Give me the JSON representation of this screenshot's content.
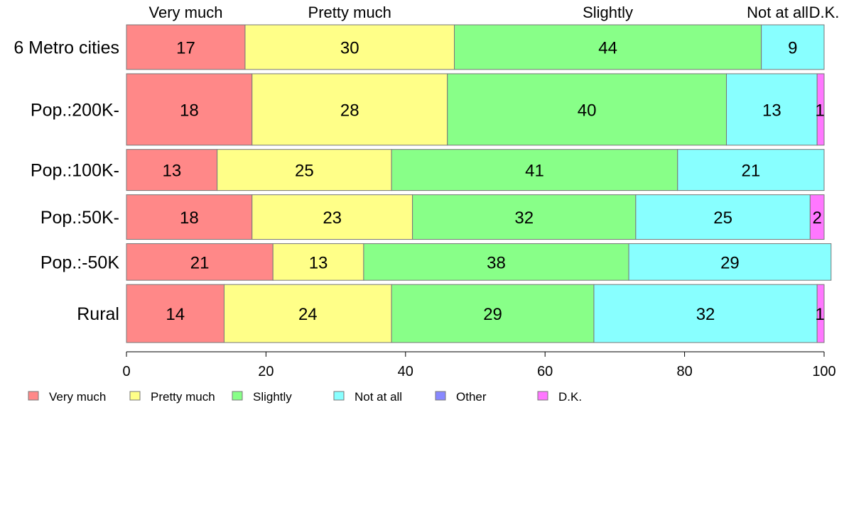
{
  "chart_data": {
    "type": "bar",
    "orientation": "horizontal",
    "stacked": true,
    "categories": [
      "6 Metro cities",
      "Pop.:200K-",
      "Pop.:100K-",
      "Pop.:50K-",
      "Pop.:-50K",
      "Rural"
    ],
    "category_weights": [
      1.0,
      1.6,
      0.92,
      1.0,
      0.82,
      1.3
    ],
    "series": [
      {
        "name": "Very much",
        "color": "#ff8888",
        "values": [
          17,
          18,
          13,
          18,
          21,
          14
        ]
      },
      {
        "name": "Pretty much",
        "color": "#ffff88",
        "values": [
          30,
          28,
          25,
          23,
          13,
          24
        ]
      },
      {
        "name": "Slightly",
        "color": "#88ff88",
        "values": [
          44,
          40,
          41,
          32,
          38,
          29
        ]
      },
      {
        "name": "Not at all",
        "color": "#88ffff",
        "values": [
          9,
          13,
          21,
          25,
          29,
          32
        ]
      },
      {
        "name": "Other",
        "color": "#8888ff",
        "values": [
          0,
          0,
          0,
          0,
          0,
          0
        ]
      },
      {
        "name": "D.K.",
        "color": "#ff77ff",
        "values": [
          0,
          1,
          0,
          2,
          0,
          1
        ]
      }
    ],
    "top_labels": [
      "Very much",
      "Pretty much",
      "Slightly",
      "Not at all",
      "D.K."
    ],
    "xticks": [
      0,
      20,
      40,
      60,
      80,
      100
    ],
    "xlim": [
      0,
      100
    ],
    "legend": [
      "Very much",
      "Pretty much",
      "Slightly",
      "Not at all",
      "Other",
      "D.K."
    ],
    "legend_position": "bottom-left",
    "grid": false
  }
}
